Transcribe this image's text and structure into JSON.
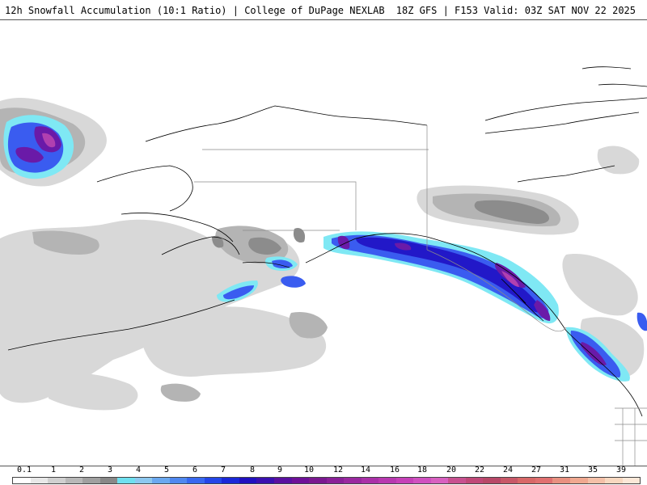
{
  "header": {
    "title": "12h Snowfall Accumulation (10:1 Ratio) | College of DuPage NEXLAB",
    "model_info": "18Z GFS | F153 Valid: 03Z SAT NOV 22 2025"
  },
  "legend": {
    "labels": [
      "0.1",
      "1",
      "2",
      "3",
      "4",
      "5",
      "6",
      "7",
      "8",
      "9",
      "10",
      "12",
      "14",
      "16",
      "18",
      "20",
      "22",
      "24",
      "27",
      "31",
      "35",
      "39"
    ],
    "colors": [
      "#ffffff",
      "#e8e8e8",
      "#d0d0d0",
      "#b8b8b8",
      "#a0a0a0",
      "#888888",
      "#6ee0f0",
      "#8cc8f0",
      "#6aa8f0",
      "#4f88f0",
      "#3868f0",
      "#2446e8",
      "#1a28d8",
      "#2010c0",
      "#3a10b0",
      "#5a10a0",
      "#6e1098",
      "#7a1890",
      "#8a2098",
      "#9a28a0",
      "#aa30a8",
      "#b838b0",
      "#c640b8",
      "#d050c0",
      "#d860c0",
      "#c85090",
      "#c04878",
      "#b84868",
      "#c85868",
      "#d86868",
      "#e07070",
      "#e89080",
      "#f0a890",
      "#f4c0a8",
      "#f8d8c0",
      "#fce8d8"
    ]
  },
  "colors": {
    "land_outline": "#000000",
    "border_line": "#777777",
    "light_gray": "#d6d6d6",
    "mid_gray": "#b4b4b4",
    "dark_gray": "#8c8c8c",
    "cyan": "#7fe8f4",
    "blue": "#3a5cf0",
    "deep_blue": "#2218c8",
    "purple": "#6a1aa8",
    "magenta": "#b040b0"
  }
}
